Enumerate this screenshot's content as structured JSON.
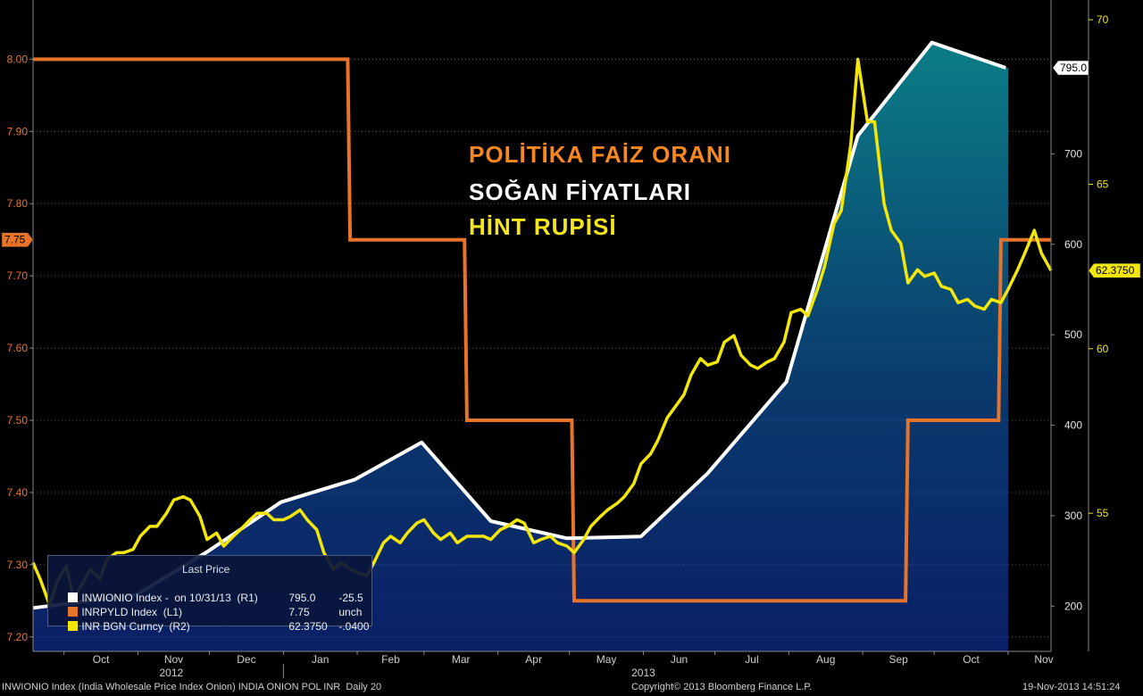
{
  "annotations": {
    "line1": "POLİTİKA FAİZ ORANI",
    "line2": "SOĞAN FİYATLARI",
    "line3": "HİNT RUPİSİ",
    "colors": [
      "#f7871e",
      "#ffffff",
      "#f5e51b"
    ]
  },
  "legend": {
    "title": "Last Price",
    "rows": [
      {
        "name": "INWIONIO Index -  on 10/31/13  (R1)",
        "last": "795.0",
        "change": "-25.5",
        "color": "#ffffff"
      },
      {
        "name": "INRPYLD Index  (L1)",
        "last": "7.75",
        "change": "unch",
        "color": "#e8742a"
      },
      {
        "name": "INR BGN Curncy  (R2)",
        "last": "62.3750",
        "change": "-.0400",
        "color": "#f2e60a"
      }
    ]
  },
  "footer": {
    "left": "INWIONIO Index (India Wholesale Price Index Onion) INDIA ONION POL INR  Daily 20",
    "center": "Copyright© 2013 Bloomberg Finance L.P.",
    "right": "19-Nov-2013 14:51:24"
  },
  "chart_data": {
    "type": "line",
    "x_axis": {
      "months": [
        "Oct",
        "Nov",
        "Dec",
        "Jan",
        "Feb",
        "Mar",
        "Apr",
        "May",
        "Jun",
        "Jul",
        "Aug",
        "Sep",
        "Oct",
        "Nov"
      ],
      "years": [
        "2012",
        "2013"
      ],
      "range": [
        "2012-09-18",
        "2013-11-19"
      ]
    },
    "left_axis": {
      "ticks": [
        "7.20",
        "7.30",
        "7.40",
        "7.50",
        "7.60",
        "7.70",
        "7.80",
        "7.90",
        "8.00"
      ],
      "ylim": [
        7.18,
        8.082
      ],
      "last_label": "7.75"
    },
    "right_axis_1": {
      "ticks": [
        "200",
        "300",
        "400",
        "500",
        "600",
        "700"
      ],
      "ylim": [
        150,
        870
      ],
      "last_label": "795.0"
    },
    "right_axis_2": {
      "ticks": [
        "55",
        "60",
        "65",
        "70"
      ],
      "ylim": [
        50.8,
        70.6
      ],
      "last_label": "62.3750"
    },
    "colors": {
      "onion": "#ffffff",
      "rate": "#e8742a",
      "inr": "#f2e60a"
    },
    "series": [
      {
        "name": "INWIONIO Index",
        "axis": "R1",
        "area_fill": true,
        "points": [
          [
            "2012-09-18",
            198
          ],
          [
            "2012-10-31",
            212
          ],
          [
            "2012-11-30",
            260
          ],
          [
            "2012-12-31",
            315
          ],
          [
            "2013-01-31",
            340
          ],
          [
            "2013-02-28",
            381
          ],
          [
            "2013-03-29",
            294
          ],
          [
            "2013-04-30",
            275
          ],
          [
            "2013-05-31",
            277
          ],
          [
            "2013-06-28",
            347
          ],
          [
            "2013-07-31",
            448
          ],
          [
            "2013-08-30",
            720
          ],
          [
            "2013-09-30",
            823
          ],
          [
            "2013-10-31",
            795
          ]
        ]
      },
      {
        "name": "INRPYLD Index",
        "axis": "L1",
        "points": [
          [
            "2012-09-18",
            8.0
          ],
          [
            "2013-01-28",
            8.0
          ],
          [
            "2013-01-29",
            7.75
          ],
          [
            "2013-03-18",
            7.75
          ],
          [
            "2013-03-19",
            7.5
          ],
          [
            "2013-05-02",
            7.5
          ],
          [
            "2013-05-03",
            7.25
          ],
          [
            "2013-09-19",
            7.25
          ],
          [
            "2013-09-20",
            7.5
          ],
          [
            "2013-10-28",
            7.5
          ],
          [
            "2013-10-29",
            7.75
          ],
          [
            "2013-11-19",
            7.75
          ]
        ]
      },
      {
        "name": "INR BGN Curncy",
        "axis": "R2",
        "points": [
          [
            "2012-09-18",
            53.5
          ],
          [
            "2012-09-21",
            53.0
          ],
          [
            "2012-09-25",
            52.2
          ],
          [
            "2012-09-28",
            52.9
          ],
          [
            "2012-10-02",
            53.4
          ],
          [
            "2012-10-05",
            52.4
          ],
          [
            "2012-10-09",
            52.9
          ],
          [
            "2012-10-12",
            53.3
          ],
          [
            "2012-10-16",
            53.0
          ],
          [
            "2012-10-19",
            53.6
          ],
          [
            "2012-10-23",
            53.8
          ],
          [
            "2012-10-26",
            53.8
          ],
          [
            "2012-10-30",
            53.9
          ],
          [
            "2012-11-02",
            54.3
          ],
          [
            "2012-11-06",
            54.6
          ],
          [
            "2012-11-09",
            54.6
          ],
          [
            "2012-11-13",
            55.0
          ],
          [
            "2012-11-16",
            55.4
          ],
          [
            "2012-11-20",
            55.5
          ],
          [
            "2012-11-23",
            55.4
          ],
          [
            "2012-11-27",
            54.9
          ],
          [
            "2012-11-30",
            54.2
          ],
          [
            "2012-12-04",
            54.4
          ],
          [
            "2012-12-07",
            54.0
          ],
          [
            "2012-12-11",
            54.3
          ],
          [
            "2012-12-14",
            54.5
          ],
          [
            "2012-12-18",
            54.8
          ],
          [
            "2012-12-21",
            55.0
          ],
          [
            "2012-12-25",
            55.0
          ],
          [
            "2012-12-28",
            54.8
          ],
          [
            "2013-01-01",
            54.8
          ],
          [
            "2013-01-04",
            54.9
          ],
          [
            "2013-01-08",
            55.1
          ],
          [
            "2013-01-11",
            54.8
          ],
          [
            "2013-01-15",
            54.5
          ],
          [
            "2013-01-18",
            53.8
          ],
          [
            "2013-01-22",
            53.3
          ],
          [
            "2013-01-25",
            53.5
          ],
          [
            "2013-01-29",
            53.3
          ],
          [
            "2013-02-01",
            53.2
          ],
          [
            "2013-02-05",
            53.1
          ],
          [
            "2013-02-08",
            53.5
          ],
          [
            "2013-02-12",
            54.1
          ],
          [
            "2013-02-15",
            54.3
          ],
          [
            "2013-02-19",
            54.1
          ],
          [
            "2013-02-22",
            54.4
          ],
          [
            "2013-02-26",
            54.7
          ],
          [
            "2013-03-01",
            54.8
          ],
          [
            "2013-03-05",
            54.4
          ],
          [
            "2013-03-08",
            54.2
          ],
          [
            "2013-03-12",
            54.4
          ],
          [
            "2013-03-15",
            54.1
          ],
          [
            "2013-03-19",
            54.3
          ],
          [
            "2013-03-22",
            54.3
          ],
          [
            "2013-03-26",
            54.3
          ],
          [
            "2013-03-29",
            54.2
          ],
          [
            "2013-04-02",
            54.5
          ],
          [
            "2013-04-05",
            54.6
          ],
          [
            "2013-04-09",
            54.8
          ],
          [
            "2013-04-12",
            54.7
          ],
          [
            "2013-04-16",
            54.1
          ],
          [
            "2013-04-19",
            54.2
          ],
          [
            "2013-04-23",
            54.3
          ],
          [
            "2013-04-26",
            54.1
          ],
          [
            "2013-04-30",
            54.0
          ],
          [
            "2013-05-03",
            53.8
          ],
          [
            "2013-05-07",
            54.2
          ],
          [
            "2013-05-10",
            54.6
          ],
          [
            "2013-05-14",
            54.9
          ],
          [
            "2013-05-17",
            55.1
          ],
          [
            "2013-05-21",
            55.3
          ],
          [
            "2013-05-24",
            55.5
          ],
          [
            "2013-05-28",
            55.9
          ],
          [
            "2013-05-31",
            56.5
          ],
          [
            "2013-06-04",
            56.8
          ],
          [
            "2013-06-07",
            57.2
          ],
          [
            "2013-06-11",
            57.9
          ],
          [
            "2013-06-14",
            58.2
          ],
          [
            "2013-06-18",
            58.6
          ],
          [
            "2013-06-21",
            59.2
          ],
          [
            "2013-06-25",
            59.7
          ],
          [
            "2013-06-28",
            59.5
          ],
          [
            "2013-07-02",
            59.6
          ],
          [
            "2013-07-05",
            60.2
          ],
          [
            "2013-07-09",
            60.4
          ],
          [
            "2013-07-12",
            59.8
          ],
          [
            "2013-07-16",
            59.5
          ],
          [
            "2013-07-19",
            59.4
          ],
          [
            "2013-07-23",
            59.6
          ],
          [
            "2013-07-26",
            59.7
          ],
          [
            "2013-07-30",
            60.2
          ],
          [
            "2013-08-02",
            61.1
          ],
          [
            "2013-08-06",
            61.2
          ],
          [
            "2013-08-09",
            61.0
          ],
          [
            "2013-08-13",
            61.8
          ],
          [
            "2013-08-16",
            62.5
          ],
          [
            "2013-08-20",
            63.8
          ],
          [
            "2013-08-23",
            64.2
          ],
          [
            "2013-08-27",
            66.2
          ],
          [
            "2013-08-30",
            68.8
          ],
          [
            "2013-09-03",
            66.9
          ],
          [
            "2013-09-06",
            66.9
          ],
          [
            "2013-09-10",
            64.4
          ],
          [
            "2013-09-13",
            63.6
          ],
          [
            "2013-09-17",
            63.2
          ],
          [
            "2013-09-20",
            62.0
          ],
          [
            "2013-09-24",
            62.4
          ],
          [
            "2013-09-27",
            62.2
          ],
          [
            "2013-10-01",
            62.3
          ],
          [
            "2013-10-04",
            61.9
          ],
          [
            "2013-10-08",
            61.8
          ],
          [
            "2013-10-11",
            61.4
          ],
          [
            "2013-10-15",
            61.5
          ],
          [
            "2013-10-18",
            61.3
          ],
          [
            "2013-10-22",
            61.2
          ],
          [
            "2013-10-25",
            61.5
          ],
          [
            "2013-10-29",
            61.4
          ],
          [
            "2013-11-01",
            61.8
          ],
          [
            "2013-11-05",
            62.4
          ],
          [
            "2013-11-08",
            62.9
          ],
          [
            "2013-11-12",
            63.6
          ],
          [
            "2013-11-15",
            62.9
          ],
          [
            "2013-11-19",
            62.375
          ]
        ]
      }
    ]
  }
}
